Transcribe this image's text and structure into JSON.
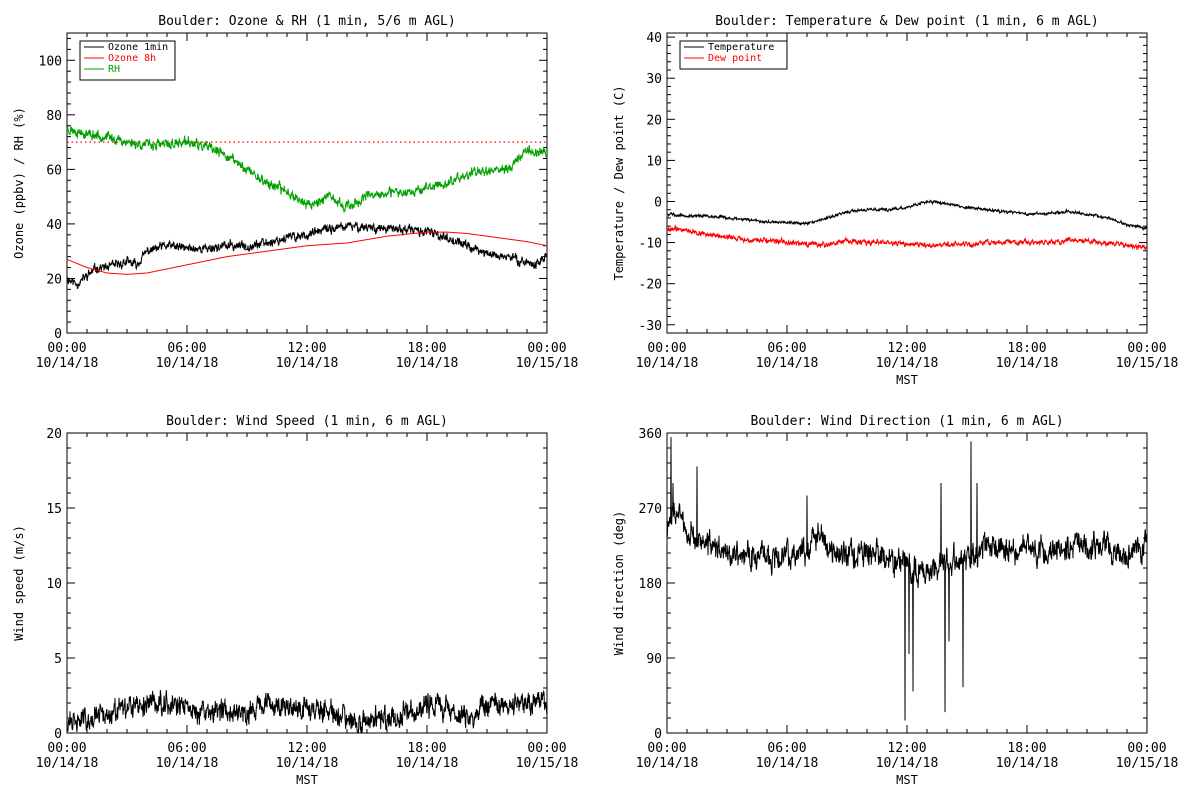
{
  "chart_data": [
    {
      "id": "ozone",
      "type": "line",
      "title": "Boulder: Ozone & RH (1 min, 5/6 m AGL)",
      "ylabel": "Ozone (ppbv) / RH (%)",
      "xlabel": "",
      "xlim": [
        0,
        24
      ],
      "ylim": [
        0,
        110
      ],
      "x_ticks": [
        {
          "value": 0,
          "time": "00:00",
          "date": "10/14/18"
        },
        {
          "value": 6,
          "time": "06:00",
          "date": "10/14/18"
        },
        {
          "value": 12,
          "time": "12:00",
          "date": "10/14/18"
        },
        {
          "value": 18,
          "time": "18:00",
          "date": "10/14/18"
        },
        {
          "value": 24,
          "time": "00:00",
          "date": "10/15/18"
        }
      ],
      "y_ticks": [
        0,
        20,
        40,
        60,
        80,
        100
      ],
      "reference_line": {
        "y": 70,
        "color": "#ff0000",
        "style": "dotted"
      },
      "legend": {
        "placement": "top-left",
        "entries": [
          {
            "label": "Ozone 1min",
            "color": "#000000"
          },
          {
            "label": "Ozone 8h",
            "color": "#ff0000"
          },
          {
            "label": "RH",
            "color": "#00a000"
          }
        ]
      },
      "series": [
        {
          "name": "Ozone 1min",
          "color": "#000000",
          "noise": 1.2,
          "seed": 11,
          "x": [
            0,
            0.5,
            1,
            1.5,
            2,
            3,
            3.5,
            4,
            5,
            6,
            7,
            8,
            9,
            10,
            11,
            12,
            13,
            14,
            15,
            16,
            17,
            18,
            19,
            20,
            21,
            22,
            23,
            23.5,
            24
          ],
          "y": [
            20,
            18,
            21,
            24,
            24,
            26,
            25,
            30,
            32,
            31,
            31,
            32,
            32,
            33,
            35,
            36,
            38,
            39,
            39,
            38,
            38,
            37,
            35,
            32,
            29,
            28,
            26,
            25,
            29
          ]
        },
        {
          "name": "Ozone 8h",
          "color": "#ff0000",
          "noise": 0,
          "seed": 0,
          "x": [
            0,
            1,
            2,
            3,
            4,
            5,
            6,
            8,
            10,
            12,
            14,
            16,
            18,
            19,
            20,
            21,
            22,
            23,
            24
          ],
          "y": [
            27,
            24,
            22,
            21.5,
            22,
            23.5,
            25,
            28,
            30,
            32,
            33,
            35.5,
            37,
            37,
            36.5,
            35.5,
            34.5,
            33.5,
            32
          ]
        },
        {
          "name": "RH",
          "color": "#00a000",
          "noise": 1.3,
          "seed": 23,
          "x": [
            0,
            1,
            2,
            3,
            4,
            5,
            6,
            7,
            8,
            9,
            10,
            11,
            12,
            12.5,
            13,
            14,
            15,
            16,
            17,
            18,
            19,
            20,
            21,
            22,
            23,
            24
          ],
          "y": [
            75,
            73,
            72,
            70,
            69,
            69,
            70,
            68,
            65,
            60,
            55,
            52,
            47,
            48,
            50,
            46,
            50,
            51,
            52,
            53,
            55,
            58,
            60,
            60,
            67,
            66
          ]
        }
      ]
    },
    {
      "id": "temperature",
      "type": "line",
      "title": "Boulder: Temperature & Dew point (1 min, 6 m AGL)",
      "ylabel": "Temperature / Dew point (C)",
      "xlabel": "MST",
      "xlim": [
        0,
        24
      ],
      "ylim": [
        -32,
        41
      ],
      "x_ticks": [
        {
          "value": 0,
          "time": "00:00",
          "date": "10/14/18"
        },
        {
          "value": 6,
          "time": "06:00",
          "date": "10/14/18"
        },
        {
          "value": 12,
          "time": "12:00",
          "date": "10/14/18"
        },
        {
          "value": 18,
          "time": "18:00",
          "date": "10/14/18"
        },
        {
          "value": 24,
          "time": "00:00",
          "date": "10/15/18"
        }
      ],
      "y_ticks": [
        -30,
        -20,
        -10,
        0,
        10,
        20,
        30,
        40
      ],
      "legend": {
        "placement": "top-left",
        "entries": [
          {
            "label": "Temperature",
            "color": "#000000"
          },
          {
            "label": "Dew point",
            "color": "#ff0000"
          }
        ]
      },
      "series": [
        {
          "name": "Temperature",
          "color": "#000000",
          "noise": 0.25,
          "seed": 5,
          "x": [
            0,
            1,
            2,
            3,
            4,
            5,
            6,
            7,
            8,
            9,
            10,
            11,
            12,
            13,
            14,
            15,
            16,
            17,
            18,
            19,
            20,
            21,
            22,
            23,
            24
          ],
          "y": [
            -3,
            -3.5,
            -3.5,
            -4,
            -4.5,
            -5,
            -5,
            -5.5,
            -4,
            -2.5,
            -2,
            -2,
            -1.5,
            0,
            -0.5,
            -1.5,
            -2,
            -2.5,
            -3,
            -3,
            -2.5,
            -3,
            -4,
            -5.5,
            -6.5
          ]
        },
        {
          "name": "Dew point",
          "color": "#ff0000",
          "noise": 0.45,
          "seed": 9,
          "x": [
            0,
            1,
            2,
            3,
            4,
            5,
            6,
            7,
            8,
            9,
            10,
            11,
            12,
            13,
            14,
            15,
            16,
            17,
            18,
            19,
            20,
            21,
            22,
            23,
            24
          ],
          "y": [
            -6.5,
            -7,
            -8,
            -8.5,
            -9.5,
            -9.5,
            -10,
            -10.5,
            -10.5,
            -9.5,
            -10,
            -10,
            -10.5,
            -10.5,
            -10.5,
            -10.5,
            -10,
            -10,
            -10,
            -10,
            -9.5,
            -9.5,
            -10,
            -10.5,
            -11.5
          ]
        }
      ]
    },
    {
      "id": "wind-speed",
      "type": "line",
      "title": "Boulder: Wind Speed (1 min, 6 m AGL)",
      "ylabel": "Wind speed (m/s)",
      "xlabel": "MST",
      "xlim": [
        0,
        24
      ],
      "ylim": [
        0,
        20
      ],
      "x_ticks": [
        {
          "value": 0,
          "time": "00:00",
          "date": "10/14/18"
        },
        {
          "value": 6,
          "time": "06:00",
          "date": "10/14/18"
        },
        {
          "value": 12,
          "time": "12:00",
          "date": "10/14/18"
        },
        {
          "value": 18,
          "time": "18:00",
          "date": "10/14/18"
        },
        {
          "value": 24,
          "time": "00:00",
          "date": "10/15/18"
        }
      ],
      "y_ticks": [
        0,
        5,
        10,
        15,
        20
      ],
      "series": [
        {
          "name": "",
          "color": "#000000",
          "noise": 0.55,
          "seed": 31,
          "floor": 0,
          "x": [
            0,
            1,
            2,
            3,
            4,
            5,
            6,
            7,
            8,
            9,
            10,
            11,
            12,
            13,
            14,
            15,
            16,
            17,
            18,
            19,
            20,
            21,
            22,
            23,
            24
          ],
          "y": [
            0.6,
            1.0,
            1.2,
            1.5,
            2.0,
            2.1,
            1.6,
            1.3,
            1.6,
            1.5,
            1.8,
            1.8,
            1.7,
            1.5,
            1.0,
            0.8,
            0.9,
            1.2,
            1.9,
            1.7,
            1.0,
            1.8,
            1.9,
            2.0,
            2.3
          ]
        }
      ]
    },
    {
      "id": "wind-direction",
      "type": "line",
      "title": "Boulder: Wind Direction (1 min, 6 m AGL)",
      "ylabel": "Wind direction (deg)",
      "xlabel": "MST",
      "xlim": [
        0,
        24
      ],
      "ylim": [
        0,
        360
      ],
      "x_ticks": [
        {
          "value": 0,
          "time": "00:00",
          "date": "10/14/18"
        },
        {
          "value": 6,
          "time": "06:00",
          "date": "10/14/18"
        },
        {
          "value": 12,
          "time": "12:00",
          "date": "10/14/18"
        },
        {
          "value": 18,
          "time": "18:00",
          "date": "10/14/18"
        },
        {
          "value": 24,
          "time": "00:00",
          "date": "10/15/18"
        }
      ],
      "y_ticks": [
        0,
        90,
        180,
        270,
        360
      ],
      "series": [
        {
          "name": "",
          "color": "#000000",
          "noise": 11,
          "seed": 47,
          "x": [
            0,
            0.5,
            1,
            1.5,
            2,
            3,
            4,
            5,
            6,
            7,
            7.5,
            8,
            9,
            10,
            11,
            12,
            13,
            14,
            15,
            16,
            17,
            18,
            19,
            20,
            21,
            22,
            23,
            24
          ],
          "y": [
            250,
            265,
            245,
            230,
            225,
            215,
            215,
            210,
            215,
            220,
            240,
            225,
            215,
            215,
            210,
            200,
            195,
            205,
            210,
            225,
            220,
            220,
            215,
            220,
            225,
            225,
            215,
            230
          ],
          "spikes": [
            [
              0.2,
              355
            ],
            [
              0.3,
              300
            ],
            [
              1.5,
              320
            ],
            [
              7.0,
              285
            ],
            [
              11.9,
              15
            ],
            [
              12.1,
              95
            ],
            [
              12.3,
              50
            ],
            [
              13.9,
              25
            ],
            [
              13.7,
              300
            ],
            [
              14.1,
              110
            ],
            [
              14.8,
              55
            ],
            [
              15.2,
              350
            ],
            [
              15.5,
              300
            ]
          ]
        }
      ]
    }
  ]
}
